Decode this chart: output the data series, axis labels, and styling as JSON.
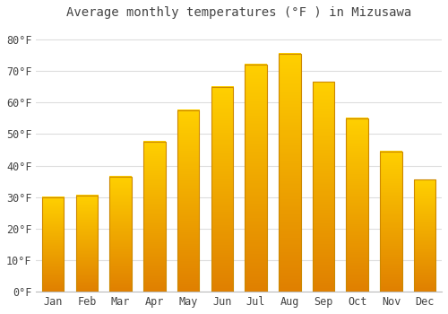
{
  "title": "Average monthly temperatures (°F ) in Mizusawa",
  "months": [
    "Jan",
    "Feb",
    "Mar",
    "Apr",
    "May",
    "Jun",
    "Jul",
    "Aug",
    "Sep",
    "Oct",
    "Nov",
    "Dec"
  ],
  "values": [
    30,
    30.5,
    36.5,
    47.5,
    57.5,
    65,
    72,
    75.5,
    66.5,
    55,
    44.5,
    35.5
  ],
  "bar_color_top": "#FFB300",
  "bar_color_bottom": "#E08000",
  "bar_edge_color": "#CC8800",
  "background_color": "#FFFFFF",
  "plot_bg_color": "#FFFFFF",
  "grid_color": "#DDDDDD",
  "text_color": "#444444",
  "ylim": [
    0,
    85
  ],
  "yticks": [
    0,
    10,
    20,
    30,
    40,
    50,
    60,
    70,
    80
  ],
  "title_fontsize": 10,
  "tick_fontsize": 8.5
}
